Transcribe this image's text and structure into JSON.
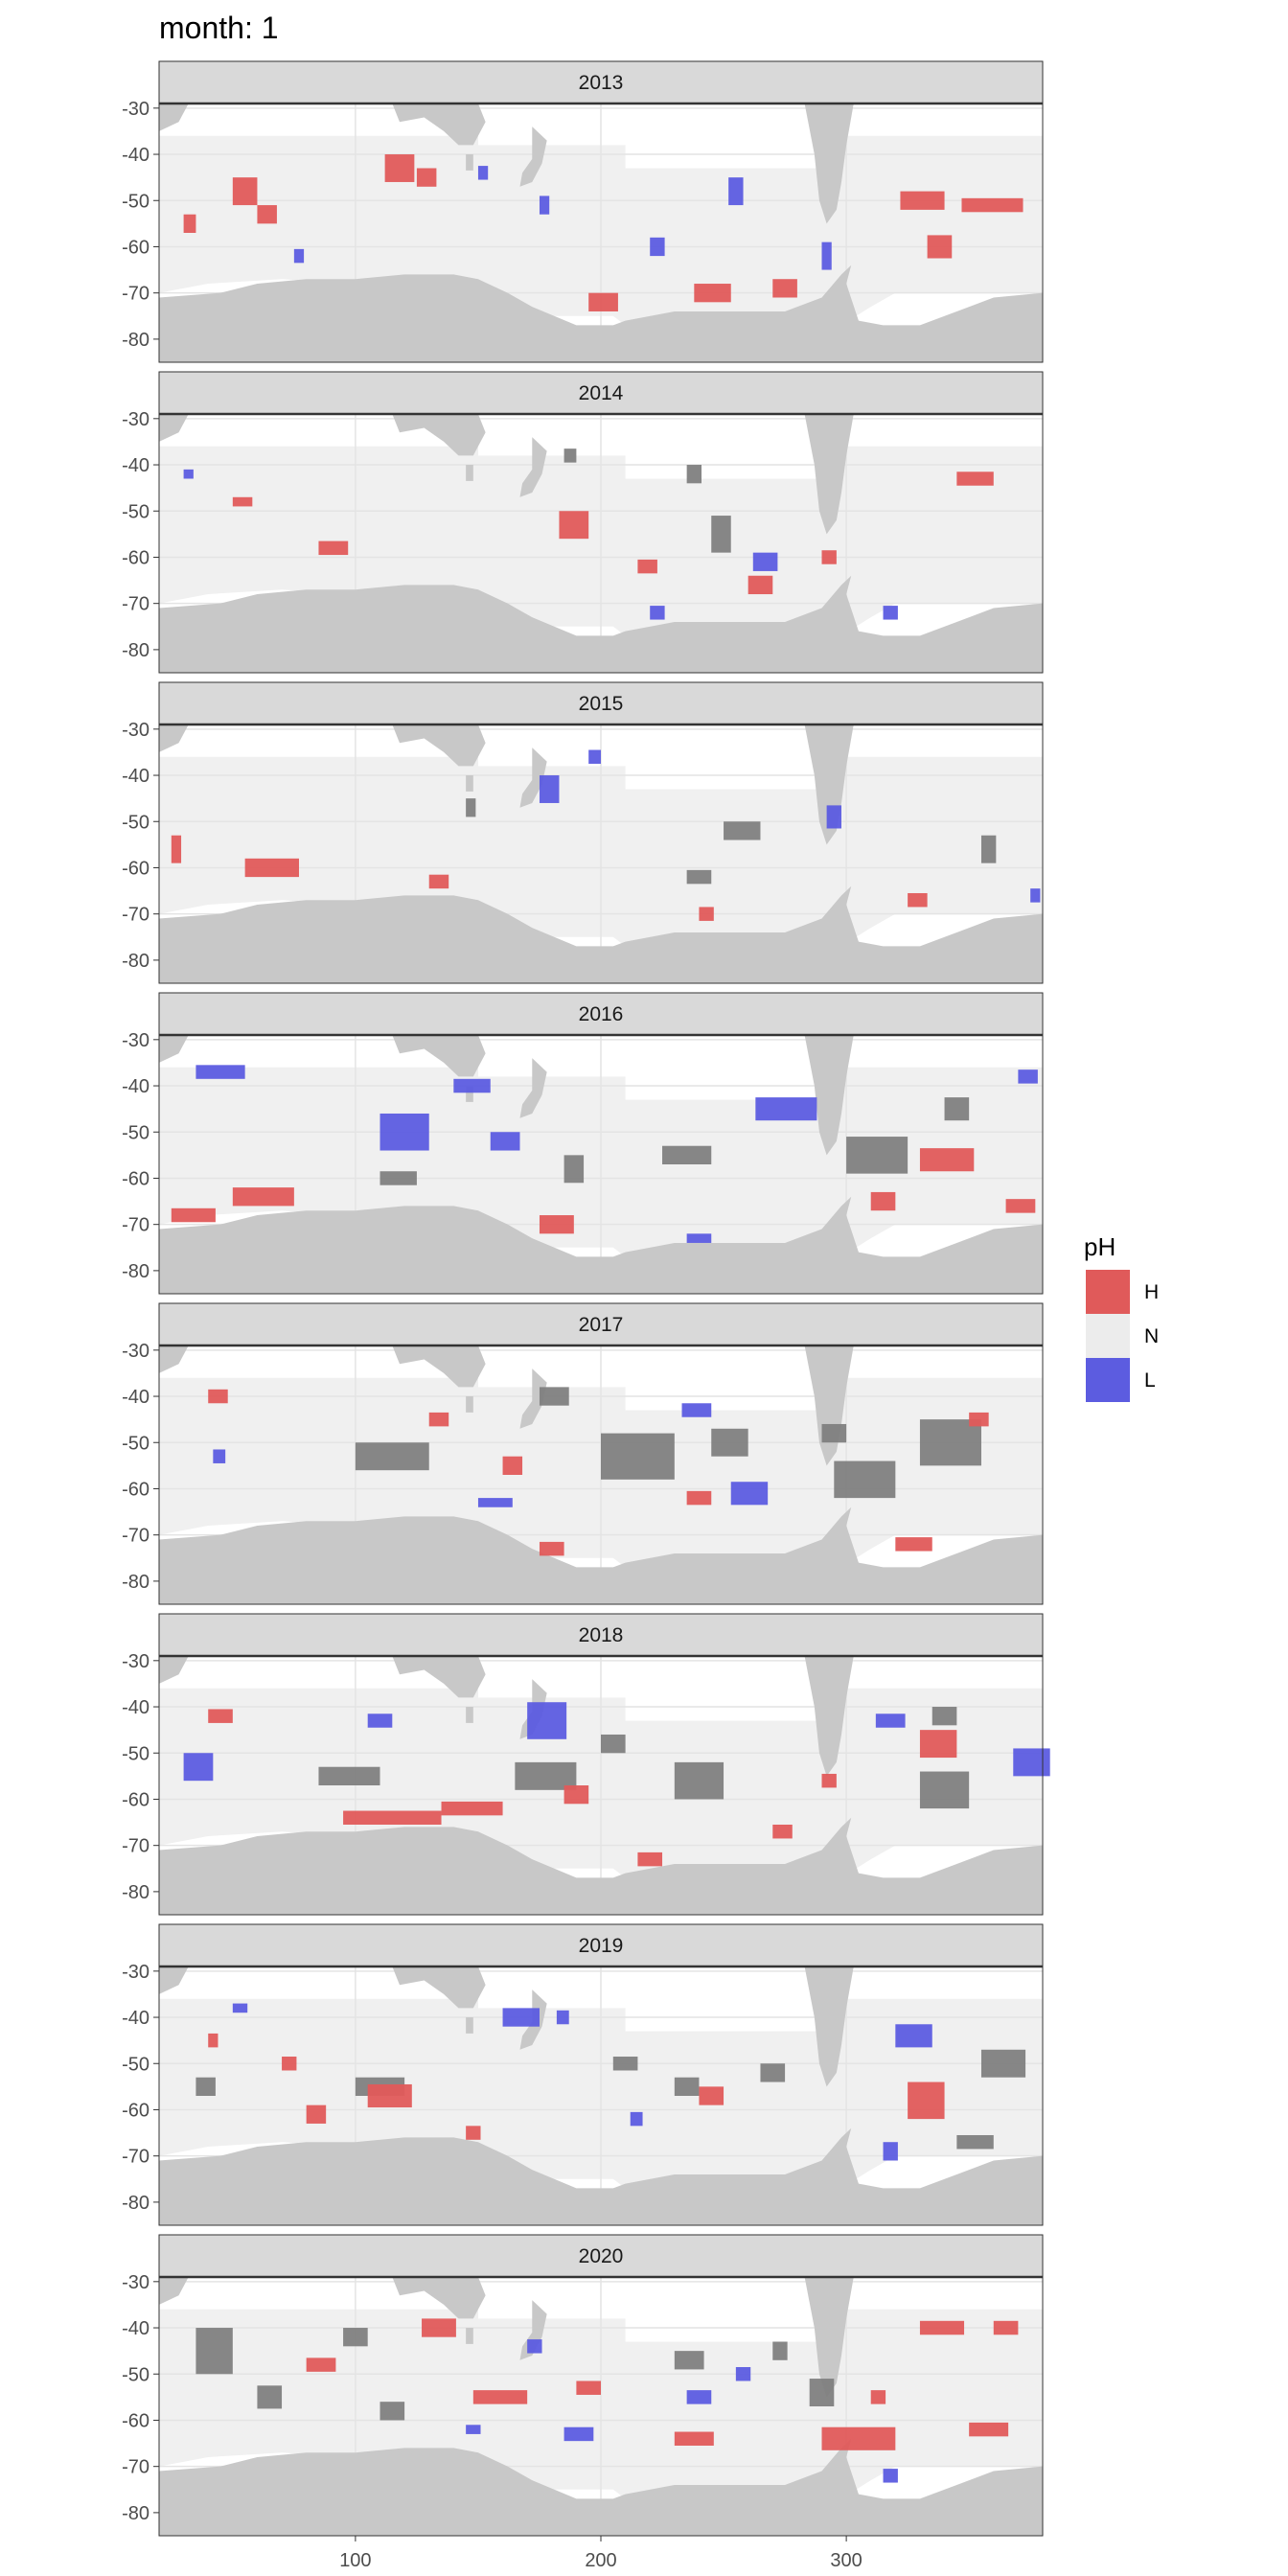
{
  "chart_data": {
    "type": "heatmap",
    "title": "month: 1",
    "xlabel": "",
    "ylabel": "",
    "xlim": [
      20,
      380
    ],
    "ylim": [
      -85,
      -29
    ],
    "x_ticks": [
      100,
      200,
      300
    ],
    "y_ticks": [
      -30,
      -40,
      -50,
      -60,
      -70,
      -80
    ],
    "y_tick_labels": [
      "-30",
      "-40",
      "-50",
      "-60",
      "-70",
      "-80"
    ],
    "x_tick_labels": [
      "100",
      "200",
      "300"
    ],
    "grid": true,
    "legend": {
      "title": "pH",
      "position": "right",
      "entries": [
        {
          "label": "H",
          "color": "#e05a5a"
        },
        {
          "label": "N",
          "color": "#ececec"
        },
        {
          "label": "L",
          "color": "#5c5ce0"
        }
      ]
    },
    "colors": {
      "land": "#c8c8c8",
      "ocean_grid": "#f0f0f0",
      "H": "#e05a5a",
      "L": "#5c5ce0",
      "mixed": "#808080",
      "strip_bg": "#d9d9d9"
    },
    "facets": [
      {
        "label": "2013",
        "H": [
          [
            50,
            -48,
            10,
            6
          ],
          [
            112,
            -43,
            12,
            6
          ],
          [
            125,
            -45,
            8,
            4
          ],
          [
            195,
            -72,
            12,
            4
          ],
          [
            238,
            -70,
            15,
            4
          ],
          [
            270,
            -69,
            10,
            4
          ],
          [
            322,
            -50,
            18,
            4
          ],
          [
            347,
            -51,
            25,
            3
          ],
          [
            333,
            -60,
            10,
            5
          ],
          [
            60,
            -53,
            8,
            4
          ],
          [
            30,
            -55,
            5,
            4
          ]
        ],
        "L": [
          [
            252,
            -48,
            6,
            6
          ],
          [
            175,
            -51,
            4,
            4
          ],
          [
            220,
            -60,
            6,
            4
          ],
          [
            290,
            -62,
            4,
            6
          ],
          [
            150,
            -44,
            4,
            3
          ],
          [
            75,
            -62,
            4,
            3
          ]
        ],
        "N": []
      },
      {
        "label": "2014",
        "H": [
          [
            183,
            -53,
            12,
            6
          ],
          [
            260,
            -66,
            10,
            4
          ],
          [
            345,
            -43,
            15,
            3
          ],
          [
            85,
            -58,
            12,
            3
          ],
          [
            215,
            -62,
            8,
            3
          ],
          [
            50,
            -48,
            8,
            2
          ],
          [
            290,
            -60,
            6,
            3
          ]
        ],
        "L": [
          [
            262,
            -61,
            10,
            4
          ],
          [
            315,
            -72,
            6,
            3
          ],
          [
            30,
            -42,
            4,
            2
          ],
          [
            220,
            -72,
            6,
            3
          ]
        ],
        "N": [
          [
            245,
            -55,
            8,
            8
          ],
          [
            235,
            -42,
            6,
            4
          ],
          [
            185,
            -38,
            5,
            3
          ]
        ]
      },
      {
        "label": "2015",
        "H": [
          [
            55,
            -60,
            22,
            4
          ],
          [
            25,
            -56,
            4,
            6
          ],
          [
            130,
            -63,
            8,
            3
          ],
          [
            325,
            -67,
            8,
            3
          ],
          [
            240,
            -70,
            6,
            3
          ]
        ],
        "L": [
          [
            175,
            -43,
            8,
            6
          ],
          [
            195,
            -36,
            5,
            3
          ],
          [
            292,
            -49,
            6,
            5
          ],
          [
            375,
            -66,
            4,
            3
          ]
        ],
        "N": [
          [
            250,
            -52,
            15,
            4
          ],
          [
            355,
            -56,
            6,
            6
          ],
          [
            235,
            -62,
            10,
            3
          ],
          [
            145,
            -47,
            4,
            4
          ]
        ]
      },
      {
        "label": "2016",
        "H": [
          [
            25,
            -68,
            18,
            3
          ],
          [
            50,
            -64,
            25,
            4
          ],
          [
            175,
            -70,
            14,
            4
          ],
          [
            330,
            -56,
            22,
            5
          ],
          [
            310,
            -65,
            10,
            4
          ],
          [
            365,
            -66,
            12,
            3
          ]
        ],
        "L": [
          [
            263,
            -45,
            25,
            5
          ],
          [
            110,
            -50,
            20,
            8
          ],
          [
            140,
            -40,
            15,
            3
          ],
          [
            155,
            -52,
            12,
            4
          ],
          [
            35,
            -37,
            20,
            3
          ],
          [
            370,
            -38,
            8,
            3
          ],
          [
            235,
            -73,
            10,
            2
          ]
        ],
        "N": [
          [
            300,
            -55,
            25,
            8
          ],
          [
            225,
            -55,
            20,
            4
          ],
          [
            185,
            -58,
            8,
            6
          ],
          [
            110,
            -60,
            15,
            3
          ],
          [
            340,
            -45,
            10,
            5
          ]
        ]
      },
      {
        "label": "2017",
        "H": [
          [
            160,
            -55,
            8,
            4
          ],
          [
            175,
            -73,
            10,
            3
          ],
          [
            320,
            -72,
            15,
            3
          ],
          [
            40,
            -40,
            8,
            3
          ],
          [
            130,
            -45,
            8,
            3
          ],
          [
            235,
            -62,
            10,
            3
          ],
          [
            350,
            -45,
            8,
            3
          ]
        ],
        "L": [
          [
            253,
            -61,
            15,
            5
          ],
          [
            233,
            -43,
            12,
            3
          ],
          [
            150,
            -63,
            14,
            2
          ],
          [
            42,
            -53,
            5,
            3
          ]
        ],
        "N": [
          [
            200,
            -53,
            30,
            10
          ],
          [
            245,
            -50,
            15,
            6
          ],
          [
            295,
            -58,
            25,
            8
          ],
          [
            330,
            -50,
            25,
            10
          ],
          [
            100,
            -53,
            30,
            6
          ],
          [
            175,
            -40,
            12,
            4
          ],
          [
            290,
            -48,
            10,
            4
          ]
        ]
      },
      {
        "label": "2018",
        "H": [
          [
            330,
            -48,
            15,
            6
          ],
          [
            95,
            -64,
            40,
            3
          ],
          [
            135,
            -62,
            25,
            3
          ],
          [
            270,
            -67,
            8,
            3
          ],
          [
            40,
            -42,
            10,
            3
          ],
          [
            185,
            -59,
            10,
            4
          ],
          [
            215,
            -73,
            10,
            3
          ],
          [
            290,
            -56,
            6,
            3
          ]
        ],
        "L": [
          [
            170,
            -43,
            16,
            8
          ],
          [
            30,
            -53,
            12,
            6
          ],
          [
            368,
            -52,
            15,
            6
          ],
          [
            312,
            -43,
            12,
            3
          ],
          [
            105,
            -43,
            10,
            3
          ]
        ],
        "N": [
          [
            165,
            -55,
            25,
            6
          ],
          [
            230,
            -56,
            20,
            8
          ],
          [
            330,
            -58,
            20,
            8
          ],
          [
            85,
            -55,
            25,
            4
          ],
          [
            200,
            -48,
            10,
            4
          ],
          [
            335,
            -42,
            10,
            4
          ]
        ]
      },
      {
        "label": "2019",
        "H": [
          [
            325,
            -58,
            15,
            8
          ],
          [
            105,
            -57,
            18,
            5
          ],
          [
            80,
            -61,
            8,
            4
          ],
          [
            240,
            -57,
            10,
            4
          ],
          [
            145,
            -65,
            6,
            3
          ],
          [
            70,
            -50,
            6,
            3
          ],
          [
            40,
            -45,
            4,
            3
          ]
        ],
        "L": [
          [
            160,
            -40,
            15,
            4
          ],
          [
            320,
            -44,
            15,
            5
          ],
          [
            315,
            -69,
            6,
            4
          ],
          [
            182,
            -40,
            5,
            3
          ],
          [
            212,
            -62,
            5,
            3
          ],
          [
            50,
            -38,
            6,
            2
          ]
        ],
        "N": [
          [
            355,
            -50,
            18,
            6
          ],
          [
            265,
            -52,
            10,
            4
          ],
          [
            100,
            -55,
            20,
            4
          ],
          [
            230,
            -55,
            10,
            4
          ],
          [
            345,
            -67,
            15,
            3
          ],
          [
            205,
            -50,
            10,
            3
          ],
          [
            35,
            -55,
            8,
            4
          ]
        ]
      },
      {
        "label": "2020",
        "H": [
          [
            290,
            -64,
            30,
            5
          ],
          [
            127,
            -40,
            14,
            4
          ],
          [
            148,
            -55,
            22,
            3
          ],
          [
            330,
            -40,
            18,
            3
          ],
          [
            360,
            -40,
            10,
            3
          ],
          [
            190,
            -53,
            10,
            3
          ],
          [
            230,
            -64,
            16,
            3
          ],
          [
            350,
            -62,
            16,
            3
          ],
          [
            80,
            -48,
            12,
            3
          ],
          [
            310,
            -55,
            6,
            3
          ]
        ],
        "L": [
          [
            185,
            -63,
            12,
            3
          ],
          [
            235,
            -55,
            10,
            3
          ],
          [
            170,
            -44,
            6,
            3
          ],
          [
            315,
            -72,
            6,
            3
          ],
          [
            255,
            -50,
            6,
            3
          ],
          [
            145,
            -62,
            6,
            2
          ]
        ],
        "N": [
          [
            35,
            -45,
            15,
            10
          ],
          [
            60,
            -55,
            10,
            5
          ],
          [
            285,
            -54,
            10,
            6
          ],
          [
            110,
            -58,
            10,
            4
          ],
          [
            230,
            -47,
            12,
            4
          ],
          [
            95,
            -42,
            10,
            4
          ],
          [
            270,
            -45,
            6,
            4
          ]
        ]
      }
    ]
  }
}
